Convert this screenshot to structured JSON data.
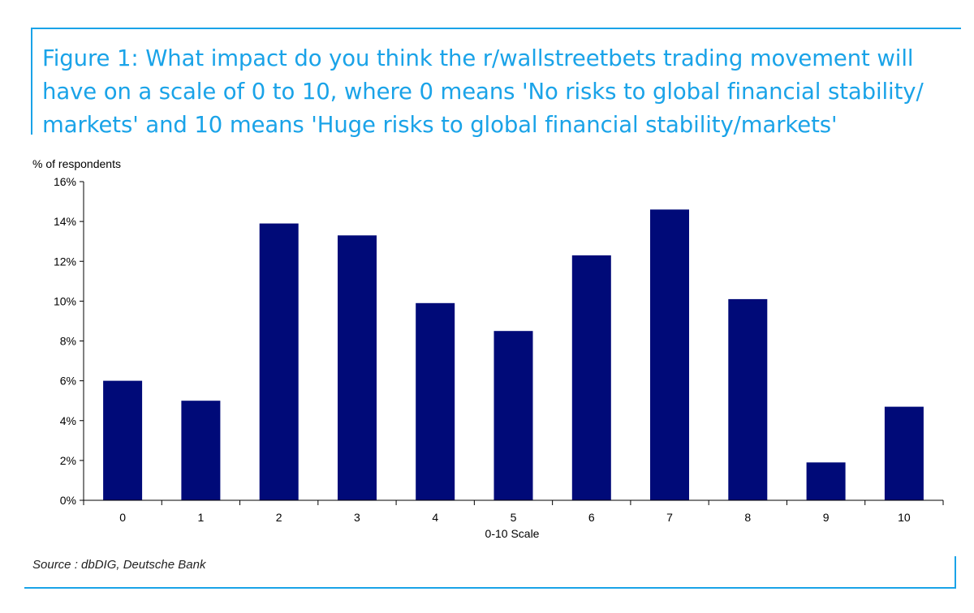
{
  "figure": {
    "title": "Figure 1: What impact do you think the r/wallstreetbets trading movement will have on a scale of 0 to 10, where 0 means 'No risks to global financial stability/ markets' and 10 means 'Huge risks to global financial stability/markets'",
    "source": "Source : dbDIG, Deutsche Bank",
    "accent_color": "#1aa3e8"
  },
  "chart_data": {
    "type": "bar",
    "title": "",
    "xlabel": "0-10 Scale",
    "ylabel": "% of respondents",
    "categories": [
      "0",
      "1",
      "2",
      "3",
      "4",
      "5",
      "6",
      "7",
      "8",
      "9",
      "10"
    ],
    "values": [
      6.0,
      5.0,
      13.9,
      13.3,
      9.9,
      8.5,
      12.3,
      14.6,
      10.1,
      1.9,
      4.7
    ],
    "ylim": [
      0,
      16
    ],
    "yticks": [
      0,
      2,
      4,
      6,
      8,
      10,
      12,
      14,
      16
    ],
    "ytick_suffix": "%",
    "grid": false,
    "bar_color": "#000a78"
  }
}
